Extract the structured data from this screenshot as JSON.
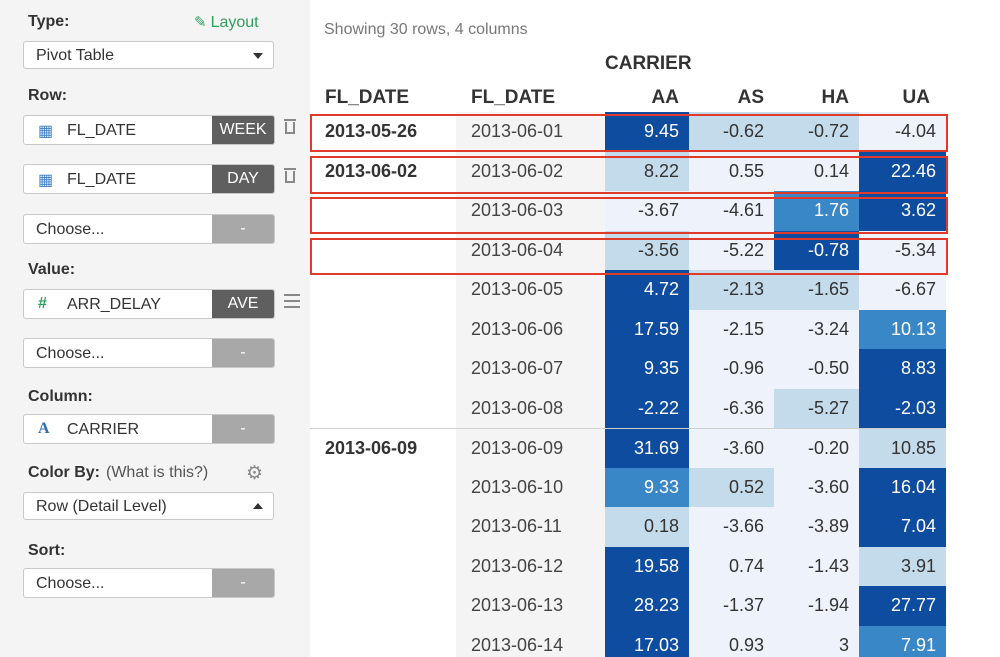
{
  "sidebar": {
    "type_label": "Type:",
    "layout_link": "Layout",
    "type_value": "Pivot Table",
    "row_label": "Row:",
    "row_items": [
      {
        "field": "FL_DATE",
        "tag": "WEEK"
      },
      {
        "field": "FL_DATE",
        "tag": "DAY"
      }
    ],
    "row_choose": {
      "placeholder": "Choose...",
      "tag": "-"
    },
    "value_label": "Value:",
    "value_item": {
      "field": "ARR_DELAY",
      "tag": "AVE"
    },
    "value_choose": {
      "placeholder": "Choose...",
      "tag": "-"
    },
    "column_label": "Column:",
    "column_item": {
      "field": "CARRIER",
      "tag": "-"
    },
    "color_by_label": "Color By:",
    "color_by_help": "(What is this?)",
    "color_by_value": "Row (Detail Level)",
    "sort_label": "Sort:",
    "sort_choose": {
      "placeholder": "Choose...",
      "tag": "-"
    }
  },
  "table": {
    "summary": "Showing 30 rows, 4 columns",
    "column_group": "CARRIER",
    "row_headers": [
      "FL_DATE",
      "FL_DATE"
    ],
    "columns": [
      "AA",
      "AS",
      "HA",
      "UA"
    ],
    "rows": [
      {
        "week": "2013-05-26",
        "date": "2013-06-01",
        "values": [
          "9.45",
          "-0.62",
          "-0.72",
          "-4.04"
        ],
        "levels": [
          3,
          1,
          1,
          0
        ]
      },
      {
        "week": "2013-06-02",
        "date": "2013-06-02",
        "values": [
          "8.22",
          "0.55",
          "0.14",
          "22.46"
        ],
        "levels": [
          1,
          0,
          0,
          3
        ]
      },
      {
        "week": "",
        "date": "2013-06-03",
        "values": [
          "-3.67",
          "-4.61",
          "1.76",
          "3.62"
        ],
        "levels": [
          0,
          0,
          2,
          3
        ]
      },
      {
        "week": "",
        "date": "2013-06-04",
        "values": [
          "-3.56",
          "-5.22",
          "-0.78",
          "-5.34"
        ],
        "levels": [
          1,
          0,
          3,
          0
        ]
      },
      {
        "week": "",
        "date": "2013-06-05",
        "values": [
          "4.72",
          "-2.13",
          "-1.65",
          "-6.67"
        ],
        "levels": [
          3,
          1,
          1,
          0
        ]
      },
      {
        "week": "",
        "date": "2013-06-06",
        "values": [
          "17.59",
          "-2.15",
          "-3.24",
          "10.13"
        ],
        "levels": [
          3,
          0,
          0,
          2
        ]
      },
      {
        "week": "",
        "date": "2013-06-07",
        "values": [
          "9.35",
          "-0.96",
          "-0.50",
          "8.83"
        ],
        "levels": [
          3,
          0,
          0,
          3
        ]
      },
      {
        "week": "",
        "date": "2013-06-08",
        "values": [
          "-2.22",
          "-6.36",
          "-5.27",
          "-2.03"
        ],
        "levels": [
          3,
          0,
          1,
          3
        ]
      },
      {
        "week": "2013-06-09",
        "date": "2013-06-09",
        "values": [
          "31.69",
          "-3.60",
          "-0.20",
          "10.85"
        ],
        "levels": [
          3,
          0,
          0,
          1
        ]
      },
      {
        "week": "",
        "date": "2013-06-10",
        "values": [
          "9.33",
          "0.52",
          "-3.60",
          "16.04"
        ],
        "levels": [
          2,
          1,
          0,
          3
        ]
      },
      {
        "week": "",
        "date": "2013-06-11",
        "values": [
          "0.18",
          "-3.66",
          "-3.89",
          "7.04"
        ],
        "levels": [
          1,
          0,
          0,
          3
        ]
      },
      {
        "week": "",
        "date": "2013-06-12",
        "values": [
          "19.58",
          "0.74",
          "-1.43",
          "3.91"
        ],
        "levels": [
          3,
          0,
          0,
          1
        ]
      },
      {
        "week": "",
        "date": "2013-06-13",
        "values": [
          "28.23",
          "-1.37",
          "-1.94",
          "27.77"
        ],
        "levels": [
          3,
          0,
          0,
          3
        ]
      },
      {
        "week": "",
        "date": "2013-06-14",
        "values": [
          "17.03",
          "0.93",
          "3",
          "7.91"
        ],
        "levels": [
          3,
          0,
          0,
          2
        ]
      }
    ]
  },
  "colors": {
    "level_0": "#eef3fb",
    "level_1": "#c4dbeb",
    "level_2": "#3a87c7",
    "level_3": "#0d4c9e",
    "highlight_box": "#e03a2a"
  }
}
